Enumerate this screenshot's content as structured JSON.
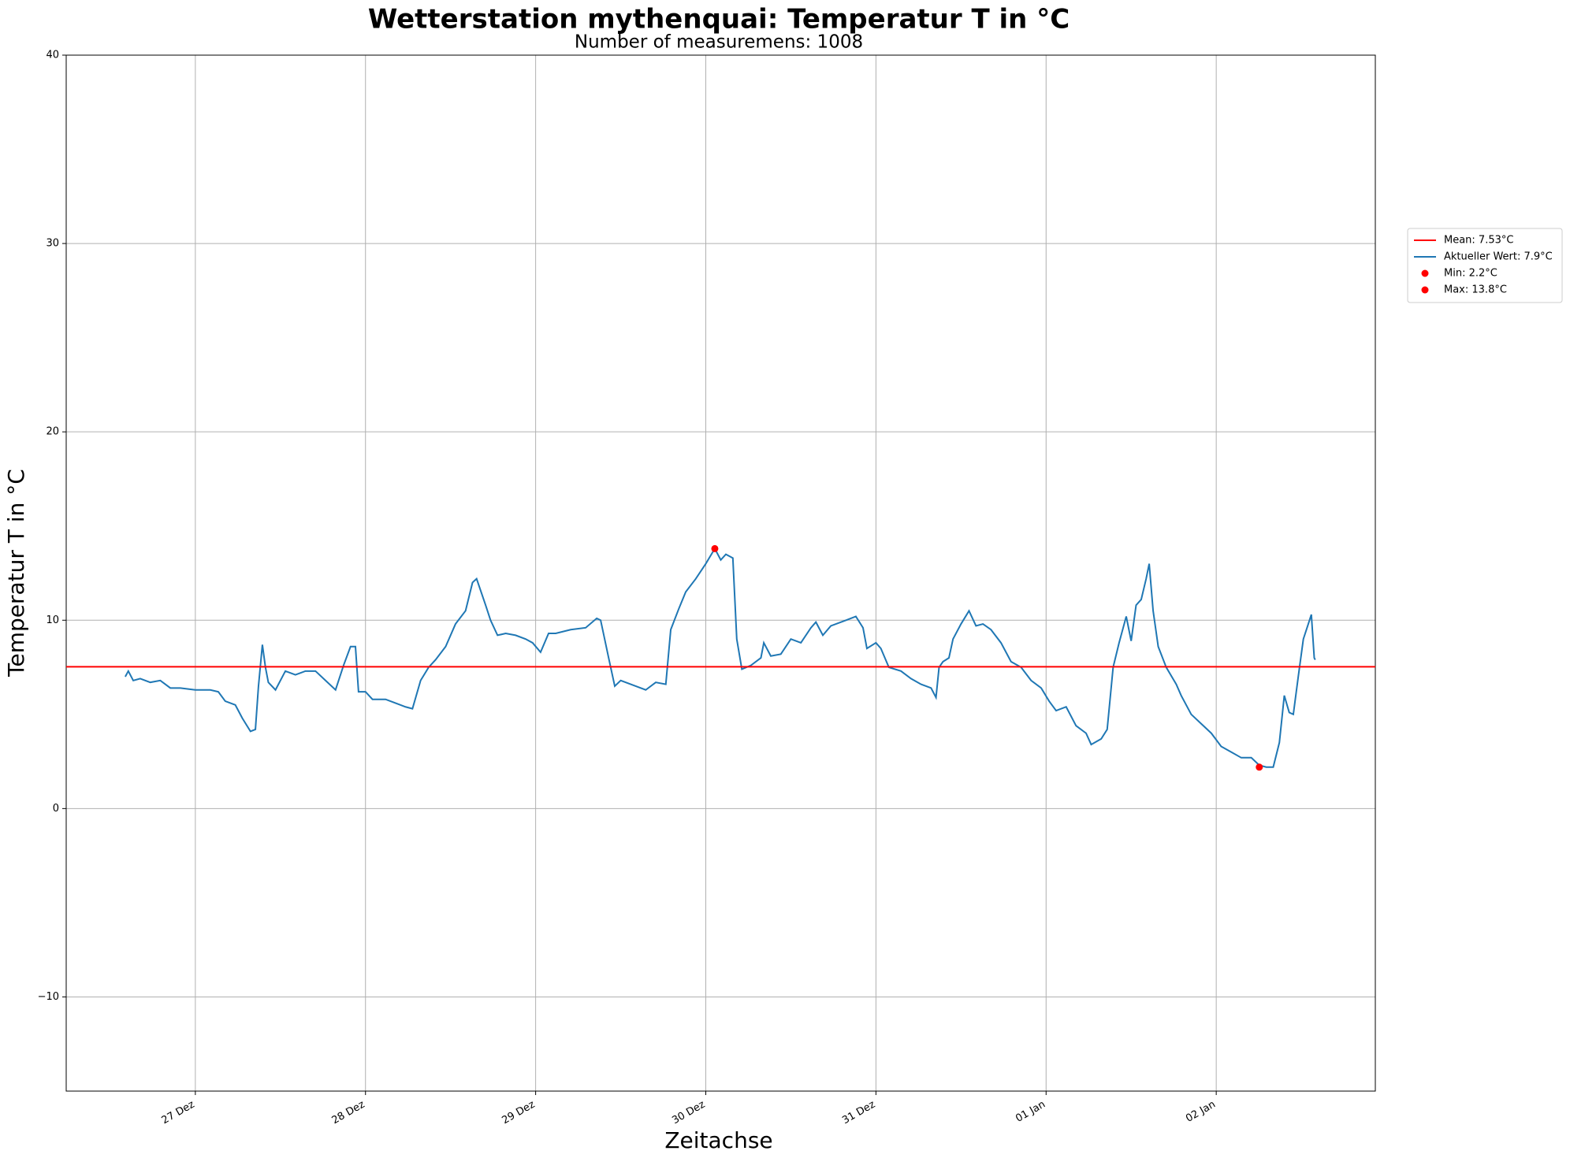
{
  "chart_data": {
    "type": "line",
    "title": "Wetterstation mythenquai: Temperatur T in °C",
    "subtitle": "Number of measuremens: 1008",
    "xlabel": "Zeitachse",
    "ylabel": "Temperatur T in °C",
    "x": [
      -0.412,
      -0.394,
      -0.365,
      -0.324,
      -0.265,
      -0.206,
      -0.147,
      -0.088,
      0,
      0.088,
      0.135,
      0.176,
      0.235,
      0.276,
      0.324,
      0.353,
      0.371,
      0.394,
      0.412,
      0.429,
      0.471,
      0.529,
      0.588,
      0.647,
      0.706,
      0.765,
      0.824,
      0.871,
      0.912,
      0.941,
      0.959,
      1.0,
      1.041,
      1.118,
      1.176,
      1.235,
      1.276,
      1.324,
      1.371,
      1.412,
      1.471,
      1.529,
      1.588,
      1.629,
      1.653,
      1.706,
      1.735,
      1.776,
      1.824,
      1.882,
      1.941,
      1.982,
      2.029,
      2.076,
      2.118,
      2.206,
      2.294,
      2.359,
      2.382,
      2.429,
      2.465,
      2.5,
      2.588,
      2.647,
      2.706,
      2.765,
      2.794,
      2.841,
      2.882,
      2.941,
      3.0,
      3.053,
      3.088,
      3.118,
      3.159,
      3.182,
      3.212,
      3.265,
      3.324,
      3.341,
      3.382,
      3.441,
      3.5,
      3.559,
      3.618,
      3.647,
      3.688,
      3.735,
      3.824,
      3.882,
      3.924,
      3.947,
      4.0,
      4.029,
      4.076,
      4.147,
      4.206,
      4.265,
      4.324,
      4.353,
      4.371,
      4.394,
      4.429,
      4.453,
      4.5,
      4.547,
      4.588,
      4.629,
      4.676,
      4.735,
      4.794,
      4.853,
      4.912,
      4.971,
      5.018,
      5.059,
      5.118,
      5.176,
      5.235,
      5.265,
      5.324,
      5.359,
      5.394,
      5.429,
      5.471,
      5.5,
      5.529,
      5.559,
      5.588,
      5.606,
      5.629,
      5.659,
      5.706,
      5.765,
      5.794,
      5.853,
      5.912,
      5.971,
      6.029,
      6.088,
      6.147,
      6.206,
      6.253,
      6.294,
      6.335,
      6.371,
      6.4,
      6.429,
      6.453,
      6.482,
      6.512,
      6.541,
      6.559,
      6.576,
      6.582
    ],
    "series": [
      {
        "name": "Aktueller Wert: 7.9°C",
        "color": "#1f77b4",
        "values": [
          7.0,
          7.3,
          6.8,
          6.9,
          6.7,
          6.8,
          6.4,
          6.4,
          6.3,
          6.3,
          6.2,
          5.7,
          5.5,
          4.8,
          4.1,
          4.2,
          6.5,
          8.7,
          7.5,
          6.7,
          6.3,
          7.3,
          7.1,
          7.3,
          7.3,
          6.8,
          6.3,
          7.6,
          8.6,
          8.6,
          6.2,
          6.2,
          5.8,
          5.8,
          5.6,
          5.4,
          5.3,
          6.8,
          7.5,
          7.9,
          8.6,
          9.8,
          10.5,
          12.0,
          12.2,
          10.8,
          10.0,
          9.2,
          9.3,
          9.2,
          9.0,
          8.8,
          8.3,
          9.3,
          9.3,
          9.5,
          9.6,
          10.1,
          10.0,
          8.0,
          6.5,
          6.8,
          6.5,
          6.3,
          6.7,
          6.6,
          9.5,
          10.6,
          11.5,
          12.2,
          13.0,
          13.8,
          13.2,
          13.5,
          13.3,
          9.0,
          7.4,
          7.6,
          8.0,
          8.8,
          8.1,
          8.2,
          9.0,
          8.8,
          9.6,
          9.9,
          9.2,
          9.7,
          10.0,
          10.2,
          9.6,
          8.5,
          8.8,
          8.5,
          7.5,
          7.3,
          6.9,
          6.6,
          6.4,
          5.9,
          7.5,
          7.8,
          8.0,
          9.0,
          9.8,
          10.5,
          9.7,
          9.8,
          9.5,
          8.8,
          7.8,
          7.5,
          6.8,
          6.4,
          5.7,
          5.2,
          5.4,
          4.4,
          4.0,
          3.4,
          3.7,
          4.2,
          7.5,
          8.8,
          10.2,
          8.9,
          10.8,
          11.1,
          12.2,
          13.0,
          10.5,
          8.6,
          7.5,
          6.6,
          6.0,
          5.0,
          4.5,
          4.0,
          3.3,
          3.0,
          2.7,
          2.7,
          2.3,
          2.2,
          2.2,
          3.5,
          6.0,
          5.1,
          5.0,
          7.0,
          9.0,
          9.8,
          10.3,
          8.0,
          7.9
        ]
      }
    ],
    "mean": {
      "name": "Mean: 7.53°C",
      "value": 7.53,
      "color": "#ff0000"
    },
    "markers": [
      {
        "name": "Min: 2.2°C",
        "x": 6.253,
        "y": 2.2,
        "color": "#ff0000"
      },
      {
        "name": "Max: 13.8°C",
        "x": 3.053,
        "y": 13.8,
        "color": "#ff0000"
      }
    ],
    "xlim": [
      -0.759,
      6.935
    ],
    "xticks": [
      {
        "value": 0,
        "label": "27 Dez"
      },
      {
        "value": 1,
        "label": "28 Dez"
      },
      {
        "value": 2,
        "label": "29 Dez"
      },
      {
        "value": 3,
        "label": "30 Dez"
      },
      {
        "value": 4,
        "label": "31 Dez"
      },
      {
        "value": 5,
        "label": "01 Jan"
      },
      {
        "value": 6,
        "label": "02 Jan"
      }
    ],
    "ylim": [
      -15,
      40
    ],
    "yticks": [
      {
        "value": -10,
        "label": "−10"
      },
      0,
      10,
      20,
      30,
      40
    ],
    "grid": true,
    "legend": "right"
  }
}
